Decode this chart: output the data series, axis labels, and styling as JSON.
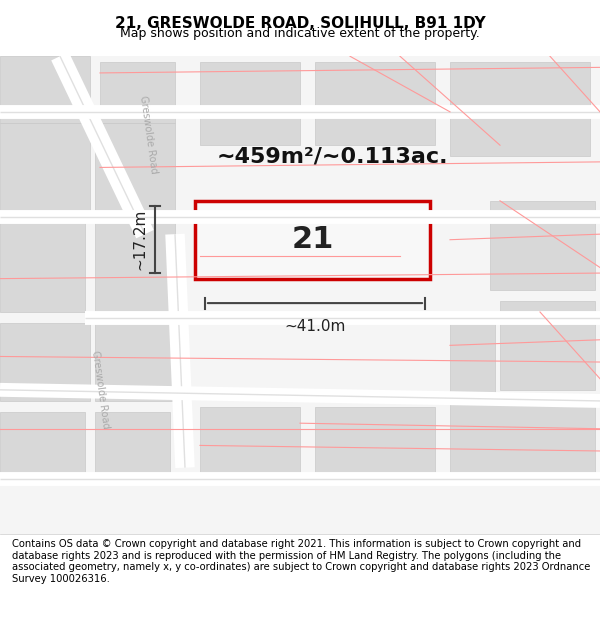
{
  "title": "21, GRESWOLDE ROAD, SOLIHULL, B91 1DY",
  "subtitle": "Map shows position and indicative extent of the property.",
  "area_text": "~459m²/~0.113ac.",
  "number_label": "21",
  "width_label": "~41.0m",
  "height_label": "~17.2m",
  "footer_text": "Contains OS data © Crown copyright and database right 2021. This information is subject to Crown copyright and database rights 2023 and is reproduced with the permission of HM Land Registry. The polygons (including the associated geometry, namely x, y co-ordinates) are subject to Crown copyright and database rights 2023 Ordnance Survey 100026316.",
  "map_bg": "#f5f5f5",
  "block_color": "#e0e0e0",
  "road_line_color": "#ffffff",
  "road_outline_color": "#e8e8e8",
  "property_fill": "#ffffff",
  "property_edge": "#cc0000",
  "dim_line_color": "#444444",
  "road_label_color": "#aaaaaa",
  "title_color": "#000000",
  "footer_color": "#000000",
  "figsize": [
    6.0,
    6.25
  ],
  "dpi": 100
}
